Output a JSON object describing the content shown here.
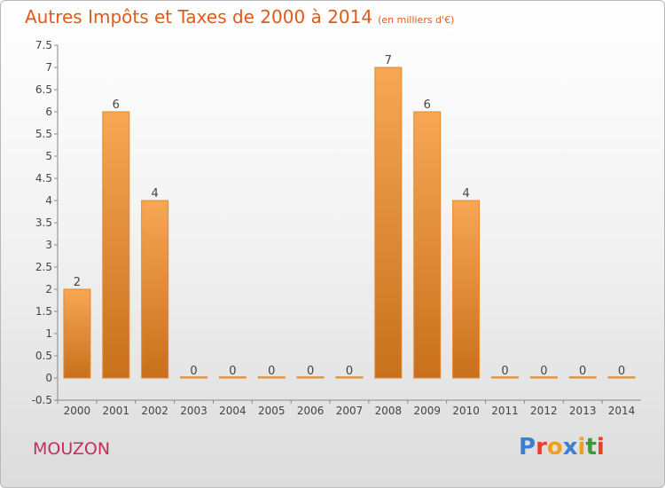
{
  "header": {
    "title": "Autres Impôts et Taxes de 2000 à 2014",
    "unit": "(en milliers d'€)"
  },
  "footer": {
    "commune": "MOUZON",
    "logo_text": "Proxiti",
    "logo_colors": [
      "#3a7fd0",
      "#e8402a",
      "#f0a020",
      "#3a7fd0",
      "#f0a020",
      "#3a9a3a",
      "#e8402a"
    ]
  },
  "colors": {
    "bar_top": "#f7a754",
    "bar_bottom": "#c8701c",
    "bar_edge": "#e08a30",
    "accent": "#e05a1c"
  },
  "chart_data": {
    "type": "bar",
    "categories": [
      "2000",
      "2001",
      "2002",
      "2003",
      "2004",
      "2005",
      "2006",
      "2007",
      "2008",
      "2009",
      "2010",
      "2011",
      "2012",
      "2013",
      "2014"
    ],
    "values": [
      2,
      6,
      4,
      0,
      0,
      0,
      0,
      0,
      7,
      6,
      4,
      0,
      0,
      0,
      0
    ],
    "data_labels": [
      "2",
      "6",
      "4",
      "0",
      "0",
      "0",
      "0",
      "0",
      "7",
      "6",
      "4",
      "0",
      "0",
      "0",
      "0"
    ],
    "y_ticks": [
      "-0.5",
      "0",
      "0.5",
      "1",
      "1.5",
      "2",
      "2.5",
      "3",
      "3.5",
      "4",
      "4.5",
      "5",
      "5.5",
      "6",
      "6.5",
      "7",
      "7.5"
    ],
    "ylim": [
      -0.5,
      7.5
    ],
    "grid": false,
    "legend": "none"
  }
}
